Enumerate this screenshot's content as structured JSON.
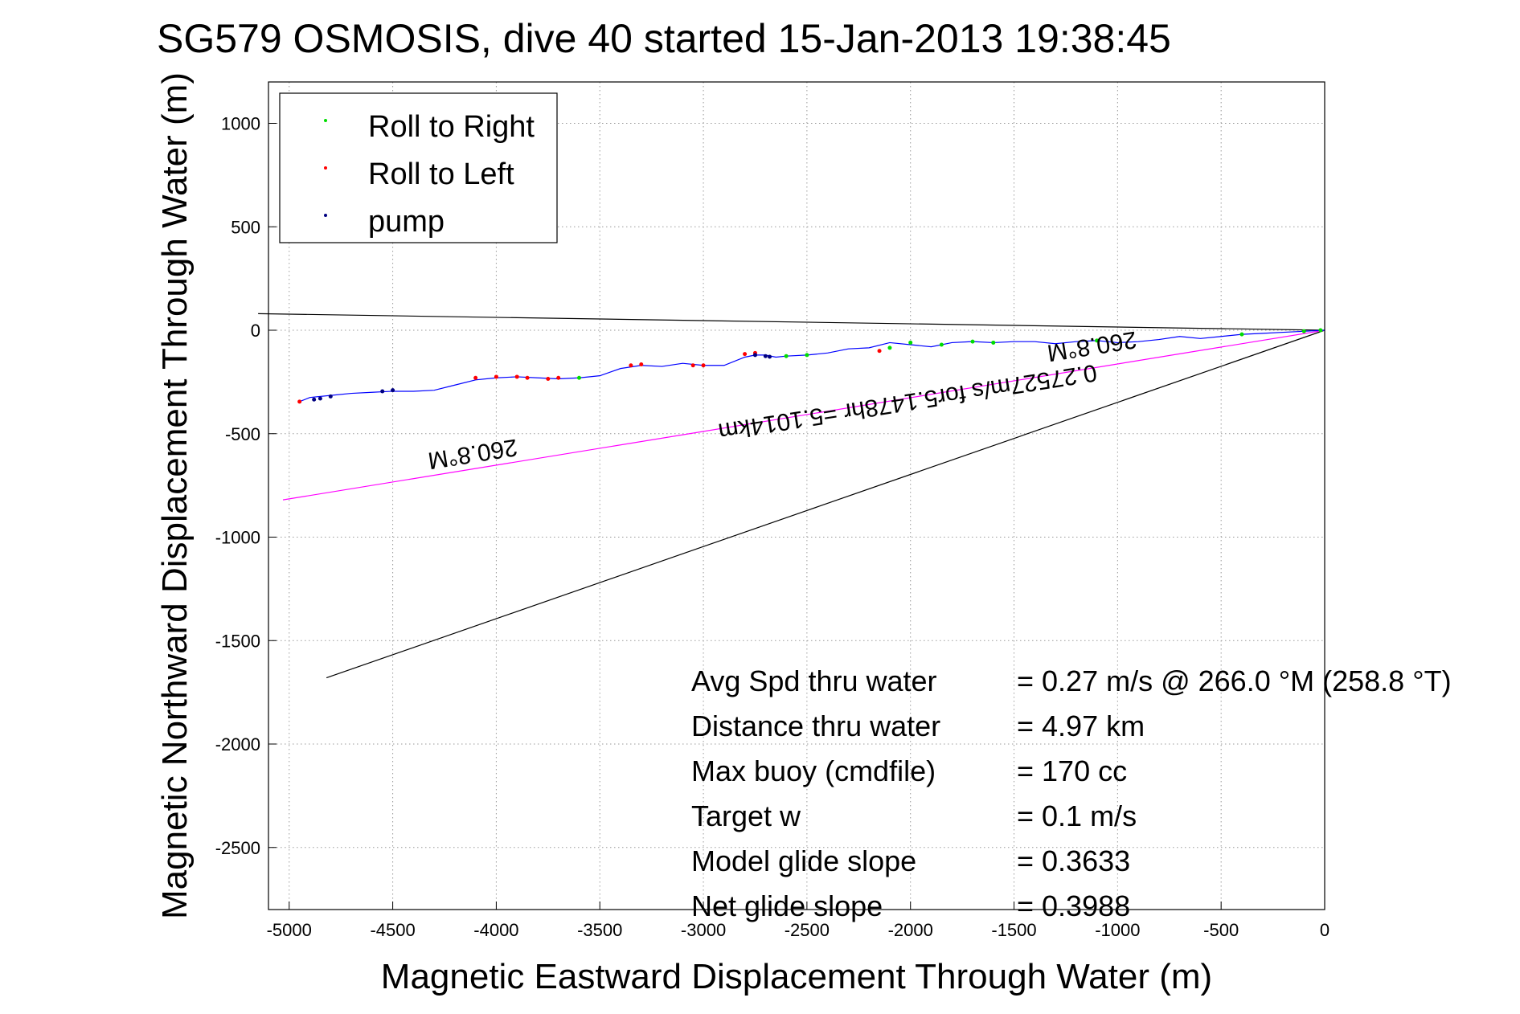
{
  "chart_data": {
    "type": "line",
    "title": "SG579 OSMOSIS, dive 40 started 15-Jan-2013 19:38:45",
    "xlabel": "Magnetic Eastward Displacement Through Water (m)",
    "ylabel": "Magnetic Northward Displacement Through Water (m)",
    "xlim": [
      -5100,
      0
    ],
    "ylim": [
      -2800,
      1200
    ],
    "xticks": [
      -5000,
      -4500,
      -4000,
      -3500,
      -3000,
      -2500,
      -2000,
      -1500,
      -1000,
      -500,
      0
    ],
    "yticks": [
      1000,
      500,
      0,
      -500,
      -1000,
      -1500,
      -2000,
      -2500
    ],
    "grid": true,
    "legend": {
      "placement": "top-left",
      "entries": [
        {
          "label": "Roll to Right",
          "color": "#00dd00"
        },
        {
          "label": "Roll to Left",
          "color": "#ff0000"
        },
        {
          "label": "pump",
          "color": "#000080"
        }
      ]
    },
    "track": {
      "color": "#0000ff",
      "x": [
        0,
        -100,
        -200,
        -300,
        -400,
        -500,
        -600,
        -700,
        -800,
        -900,
        -1000,
        -1100,
        -1200,
        -1300,
        -1400,
        -1500,
        -1600,
        -1700,
        -1800,
        -1900,
        -2000,
        -2100,
        -2200,
        -2300,
        -2400,
        -2500,
        -2600,
        -2650,
        -2700,
        -2750,
        -2800,
        -2900,
        -3000,
        -3100,
        -3200,
        -3300,
        -3400,
        -3500,
        -3600,
        -3700,
        -3800,
        -3900,
        -4000,
        -4100,
        -4200,
        -4300,
        -4400,
        -4500,
        -4600,
        -4700,
        -4800,
        -4900,
        -4950
      ],
      "y": [
        0,
        -5,
        -10,
        -15,
        -20,
        -30,
        -40,
        -30,
        -45,
        -55,
        -60,
        -50,
        -55,
        -65,
        -55,
        -55,
        -60,
        -55,
        -60,
        -80,
        -70,
        -60,
        -85,
        -90,
        -110,
        -120,
        -125,
        -130,
        -120,
        -120,
        -130,
        -170,
        -170,
        -160,
        -175,
        -170,
        -185,
        -220,
        -230,
        -235,
        -230,
        -225,
        -230,
        -240,
        -265,
        -290,
        -295,
        -295,
        -300,
        -305,
        -315,
        -325,
        -345
      ]
    },
    "roll_right_points": {
      "x": [
        -20,
        -100,
        -400,
        -1100,
        -1600,
        -1700,
        -1850,
        -2000,
        -2100,
        -2500,
        -2600,
        -3600
      ],
      "y": [
        0,
        -5,
        -20,
        -50,
        -60,
        -55,
        -70,
        -60,
        -85,
        -120,
        -125,
        -230
      ]
    },
    "roll_left_points": {
      "x": [
        -2150,
        -2750,
        -2800,
        -3000,
        -3050,
        -3300,
        -3350,
        -3700,
        -3750,
        -3850,
        -3900,
        -4000,
        -4100,
        -4950
      ],
      "y": [
        -100,
        -110,
        -115,
        -170,
        -170,
        -165,
        -170,
        -230,
        -235,
        -230,
        -225,
        -225,
        -230,
        -345
      ]
    },
    "pump_points": {
      "x": [
        -2750,
        -2700,
        -2680,
        -4500,
        -4550,
        -4800,
        -4850,
        -4880
      ],
      "y": [
        -120,
        -125,
        -128,
        -290,
        -295,
        -320,
        -330,
        -335
      ]
    },
    "reference_lines": [
      {
        "name": "upper",
        "color": "#000000",
        "x": [
          0,
          -5150
        ],
        "y": [
          0,
          80
        ]
      },
      {
        "name": "lower",
        "color": "#000000",
        "x": [
          0,
          -4820
        ],
        "y": [
          0,
          -1680
        ]
      },
      {
        "name": "current",
        "color": "#ff00ff",
        "x": [
          0,
          -5030
        ],
        "y": [
          0,
          -820
        ]
      }
    ],
    "annotations": [
      {
        "text": "260.8°M",
        "x": -1130,
        "y": -40,
        "rotate": 171
      },
      {
        "text": "0.27527m/s for5.1478hr =5.1014km",
        "x": -2020,
        "y": -310,
        "rotate": 171
      },
      {
        "text": "260.8°M",
        "x": -4120,
        "y": -560,
        "rotate": 171
      }
    ],
    "stats": [
      {
        "label": "Avg Spd thru water",
        "value": "=  0.27 m/s @ 266.0 °M (258.8 °T)"
      },
      {
        "label": "Distance thru water",
        "value": "=  4.97 km"
      },
      {
        "label": "Max buoy (cmdfile)",
        "value": "= 170 cc"
      },
      {
        "label": "Target w",
        "value": "= 0.1 m/s"
      },
      {
        "label": "Model glide slope",
        "value": "= 0.3633"
      },
      {
        "label": "Net glide slope",
        "value": "= 0.3988"
      }
    ]
  }
}
